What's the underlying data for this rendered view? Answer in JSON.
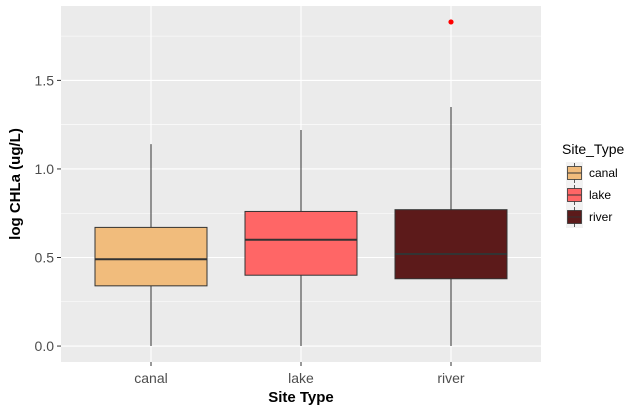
{
  "chart_data": {
    "type": "boxplot",
    "title": "",
    "xlabel": "Site Type",
    "ylabel": "log CHLa (ug/L)",
    "ylim": [
      -0.09,
      1.92
    ],
    "yticks": [
      0.0,
      0.5,
      1.0,
      1.5
    ],
    "ytick_labels": [
      "0.0",
      "0.5",
      "1.0",
      "1.5"
    ],
    "categories": [
      "canal",
      "lake",
      "river"
    ],
    "series": [
      {
        "name": "canal",
        "color": "#F1BC7C",
        "min": 0.0,
        "q1": 0.34,
        "median": 0.49,
        "q3": 0.67,
        "max": 1.14,
        "outliers": []
      },
      {
        "name": "lake",
        "color": "#FF6666",
        "min": 0.0,
        "q1": 0.4,
        "median": 0.6,
        "q3": 0.76,
        "max": 1.22,
        "outliers": []
      },
      {
        "name": "river",
        "color": "#5C1A1A",
        "min": 0.0,
        "q1": 0.38,
        "median": 0.52,
        "q3": 0.77,
        "max": 1.35,
        "outliers": [
          1.83
        ]
      }
    ],
    "outlier_color": "#FF0000",
    "grid": true,
    "legend": {
      "title": "Site_Type",
      "position": "right",
      "entries": [
        "canal",
        "lake",
        "river"
      ]
    }
  }
}
